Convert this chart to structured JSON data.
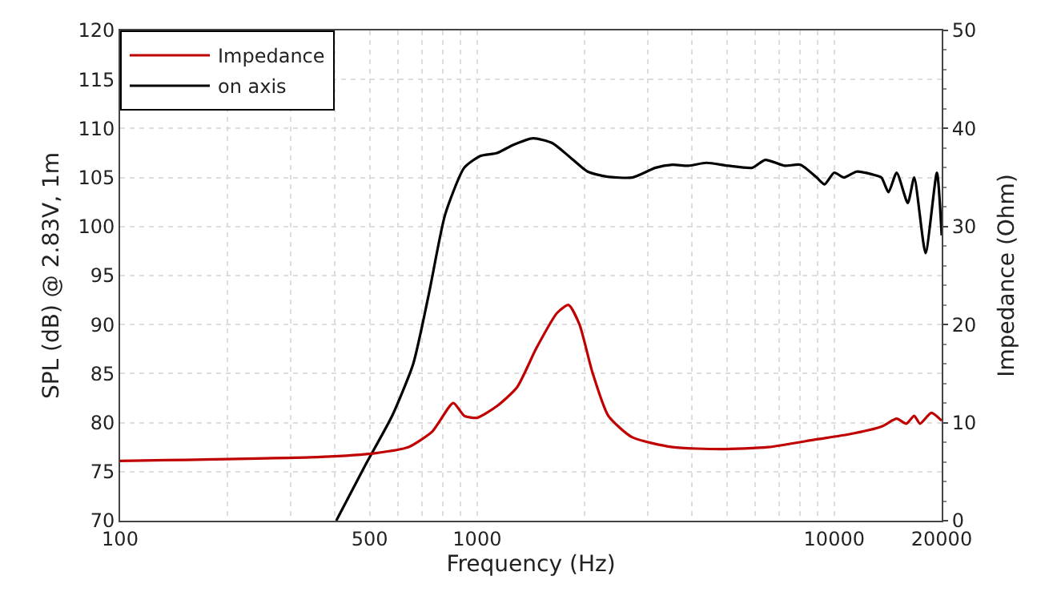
{
  "chart_data": {
    "type": "line",
    "xlabel": "Frequency (Hz)",
    "ylabel": "SPL (dB) @ 2.83V, 1m",
    "y2label": "Impedance (Ohm)",
    "log": "x",
    "grid": true,
    "legend": "top left",
    "marker": "none",
    "line_style": "solid",
    "xlim": [
      100,
      20000
    ],
    "xticks": [
      100,
      500,
      1000,
      10000,
      20000
    ],
    "ylim": [
      70,
      120
    ],
    "yticks": [
      70,
      75,
      80,
      85,
      90,
      95,
      100,
      105,
      110,
      115,
      120
    ],
    "y2lim": [
      0,
      50
    ],
    "y2ticks": [
      0,
      10,
      20,
      30,
      40,
      50
    ],
    "series": [
      {
        "name": "Impedance",
        "color": "#c00000",
        "axis": "y2",
        "x": [
          100,
          364,
          521,
          641,
          749,
          857,
          920,
          1000,
          1137,
          1293,
          1465,
          1675,
          1803,
          1935,
          2100,
          2330,
          2720,
          3525,
          4810,
          6530,
          8930,
          10960,
          13560,
          14960,
          15920,
          16750,
          17390,
          18700,
          20000
        ],
        "values": [
          6.1,
          6.5,
          6.9,
          7.5,
          9.1,
          12.0,
          10.7,
          10.5,
          11.7,
          13.6,
          17.6,
          21.2,
          22.0,
          20.0,
          15.2,
          10.7,
          8.5,
          7.5,
          7.3,
          7.5,
          8.3,
          8.8,
          9.6,
          10.4,
          9.9,
          10.7,
          9.9,
          11.0,
          10.2
        ]
      },
      {
        "name": "on axis",
        "color": "#000000",
        "x": [
          403,
          485,
          578,
          662,
          733,
          813,
          920,
          1020,
          1137,
          1257,
          1435,
          1625,
          1803,
          2040,
          2300,
          2720,
          3160,
          3525,
          3900,
          4380,
          5060,
          5900,
          6410,
          7260,
          8050,
          8930,
          9400,
          10000,
          10640,
          11560,
          12820,
          13560,
          14190,
          14960,
          16070,
          16750,
          18020,
          19390,
          20000
        ],
        "values": [
          70,
          75.6,
          80.7,
          86,
          93.2,
          101.2,
          106,
          107.2,
          107.5,
          108.3,
          109,
          108.5,
          107.2,
          105.6,
          105.1,
          105,
          106,
          106.3,
          106.2,
          106.5,
          106.2,
          106,
          106.8,
          106.2,
          106.3,
          105,
          104.3,
          105.5,
          105,
          105.6,
          105.3,
          105,
          103.5,
          105.5,
          102.4,
          105,
          97.3,
          105.5,
          99.1
        ]
      }
    ]
  }
}
